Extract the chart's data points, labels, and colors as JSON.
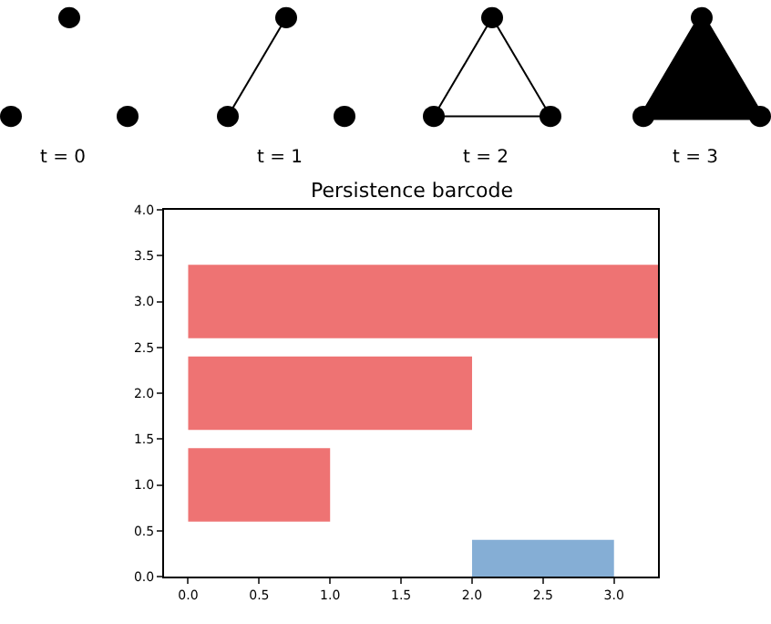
{
  "chart_data": {
    "type": "bar",
    "orientation": "horizontal",
    "title": "Persistence barcode",
    "series": [
      {
        "color": "#ee7373",
        "x": [
          3,
          2,
          1
        ],
        "values": [
          3.31,
          2,
          1
        ],
        "base": [
          0,
          0,
          0
        ]
      },
      {
        "color": "#85aed5",
        "x": [
          0
        ],
        "values": [
          1
        ],
        "base": [
          2
        ]
      }
    ],
    "xlim": [
      -0.17,
      3.31
    ],
    "xticks": [
      {
        "value": 0,
        "label": "0.0"
      },
      {
        "value": 0.5,
        "label": "0.5"
      },
      {
        "value": 1,
        "label": "1.0"
      },
      {
        "value": 1.5,
        "label": "1.5"
      },
      {
        "value": 2,
        "label": "2.0"
      },
      {
        "value": 2.5,
        "label": "2.5"
      },
      {
        "value": 3,
        "label": "3.0"
      }
    ],
    "ylim": [
      0,
      4
    ],
    "yticks": [
      {
        "value": 0,
        "label": "0.0"
      },
      {
        "value": 0.5,
        "label": "0.5"
      },
      {
        "value": 1,
        "label": "1.0"
      },
      {
        "value": 1.5,
        "label": "1.5"
      },
      {
        "value": 2,
        "label": "2.0"
      },
      {
        "value": 2.5,
        "label": "2.5"
      },
      {
        "value": 3,
        "label": "3.0"
      },
      {
        "value": 3.5,
        "label": "3.5"
      },
      {
        "value": 4,
        "label": "4.0"
      }
    ],
    "annotations": [
      "t = 0",
      "t = 1",
      "t = 2",
      "t = 3"
    ]
  }
}
